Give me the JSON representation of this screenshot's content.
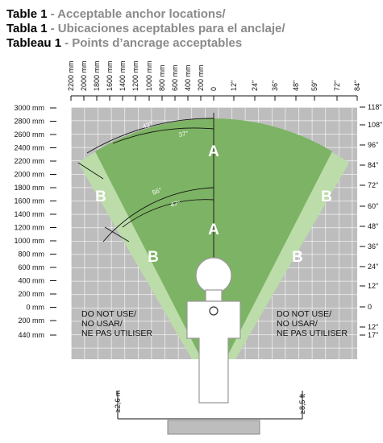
{
  "title_lines": [
    {
      "label": "Table 1",
      "text": "- Acceptable anchor locations/"
    },
    {
      "label": "Tabla 1",
      "text": "- Ubicaciones aceptables para el anclaje/"
    },
    {
      "label": "Tableau 1",
      "text": "- Points d’ancrage acceptables"
    }
  ],
  "top_axis": [
    "2200 mm",
    "2000 mm",
    "1800 mm",
    "1600 mm",
    "1400 mm",
    "1200 mm",
    "1000 mm",
    "800 mm",
    "600 mm",
    "400 mm",
    "200 mm",
    "0",
    "12\"",
    "24\"",
    "36\"",
    "48\"",
    "59\"",
    "72\"",
    "84\""
  ],
  "left_axis": [
    "3000 mm",
    "2800 mm",
    "2600 mm",
    "2400 mm",
    "2200 mm",
    "2000 mm",
    "1800 mm",
    "1600 mm",
    "1400 mm",
    "1200 mm",
    "1000 mm",
    "800 mm",
    "600 mm",
    "400 mm",
    "200 mm",
    "0 mm",
    "200 mm",
    "440 mm"
  ],
  "right_axis": [
    "118\"",
    "108\"",
    "96\"",
    "84\"",
    "72\"",
    "60\"",
    "48\"",
    "36\"",
    "24\"",
    "12\"",
    "0",
    "12\"",
    "17\""
  ],
  "angles": [
    "43°",
    "37°",
    "56°",
    "47°"
  ],
  "zones": [
    "A",
    "A",
    "B",
    "B",
    "B",
    "B"
  ],
  "warning_left": [
    "DO NOT USE/",
    "NO USAR/",
    "NE PAS UTILISER"
  ],
  "warning_right": [
    "DO NOT USE/",
    "NO USAR/",
    "NE PAS UTILISER"
  ],
  "clearance": {
    "left": "≥2,6 m",
    "right": "≥8,5 ft"
  }
}
